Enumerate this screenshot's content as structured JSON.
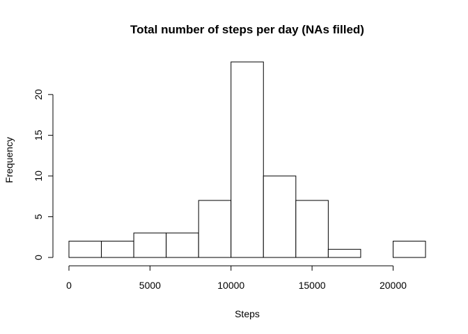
{
  "chart_data": {
    "type": "bar",
    "subtype": "histogram",
    "title": "Total number of steps per day (NAs filled)",
    "xlabel": "Steps",
    "ylabel": "Frequency",
    "bin_edges": [
      0,
      2000,
      4000,
      6000,
      8000,
      10000,
      12000,
      14000,
      16000,
      18000,
      20000,
      22000
    ],
    "values": [
      2,
      2,
      3,
      3,
      7,
      24,
      10,
      7,
      1,
      0,
      2
    ],
    "xlim": [
      0,
      22000
    ],
    "ylim": [
      0,
      24
    ],
    "xticks": [
      0,
      5000,
      10000,
      15000,
      20000
    ],
    "yticks": [
      0,
      5,
      10,
      15,
      20
    ],
    "bar_fill": "#ffffff",
    "bar_stroke": "#000000",
    "grid": false,
    "legend": "none"
  }
}
